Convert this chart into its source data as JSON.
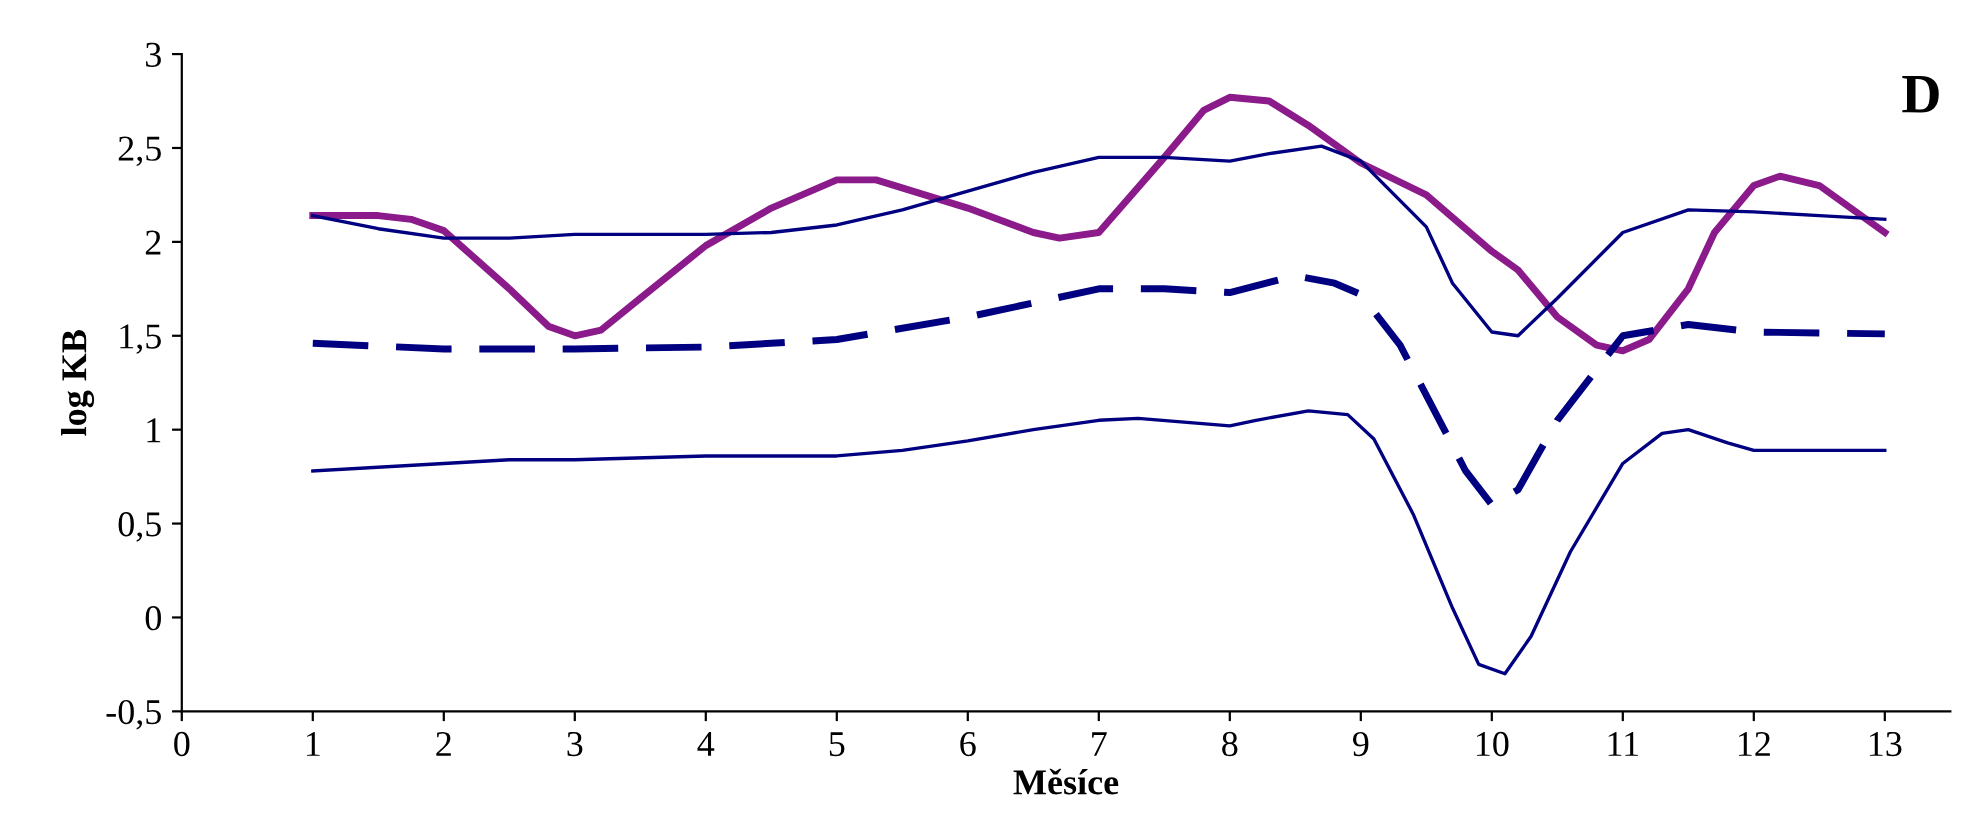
{
  "chart_data": {
    "type": "line",
    "xlabel": "Měsíce",
    "ylabel": "log KB",
    "annotations": [
      "D"
    ],
    "xlim": [
      0,
      13.5
    ],
    "xticks": [
      0,
      1,
      2,
      3,
      4,
      5,
      6,
      7,
      8,
      9,
      10,
      11,
      12,
      13
    ],
    "ylim": [
      -0.5,
      3
    ],
    "yticks": [
      {
        "value": -0.5,
        "label": "-0,5"
      },
      0,
      {
        "value": 0.5,
        "label": "0,5"
      },
      1,
      {
        "value": 1.5,
        "label": "1,5"
      },
      2,
      {
        "value": 2.5,
        "label": "2,5"
      },
      3
    ],
    "grid": false,
    "legend": false,
    "marker": "none",
    "series": [
      {
        "color": "#8b1a8b",
        "line_style": "solid",
        "x": [
          1,
          1.5,
          1.75,
          2,
          2.5,
          2.8,
          3,
          3.2,
          3.5,
          4,
          4.5,
          5,
          5.3,
          6,
          6.5,
          6.7,
          7,
          7.5,
          7.8,
          8,
          8.3,
          8.6,
          9,
          9.5,
          10,
          10.2,
          10.5,
          10.8,
          11,
          11.2,
          11.5,
          11.7,
          12,
          12.2,
          12.5,
          12.8,
          13
        ],
        "values": [
          2.14,
          2.14,
          2.12,
          2.06,
          1.75,
          1.55,
          1.5,
          1.53,
          1.7,
          1.98,
          2.18,
          2.33,
          2.33,
          2.18,
          2.05,
          2.02,
          2.05,
          2.45,
          2.7,
          2.77,
          2.75,
          2.62,
          2.42,
          2.25,
          1.95,
          1.85,
          1.6,
          1.45,
          1.42,
          1.48,
          1.75,
          2.05,
          2.3,
          2.35,
          2.3,
          2.15,
          2.05
        ]
      },
      {
        "color": "#000080",
        "line_style": "solid",
        "x": [
          1,
          1.5,
          2,
          2.5,
          3,
          4,
          4.5,
          5,
          5.5,
          6,
          6.5,
          7,
          7.5,
          8,
          8.3,
          8.7,
          9,
          9.5,
          9.7,
          10,
          10.2,
          10.5,
          11,
          11.5,
          12,
          12.5,
          13
        ],
        "values": [
          2.14,
          2.07,
          2.02,
          2.02,
          2.04,
          2.04,
          2.05,
          2.09,
          2.17,
          2.27,
          2.37,
          2.45,
          2.45,
          2.43,
          2.47,
          2.51,
          2.43,
          2.08,
          1.78,
          1.52,
          1.5,
          1.7,
          2.05,
          2.17,
          2.16,
          2.14,
          2.12
        ]
      },
      {
        "color": "#000080",
        "line_style": "dashed",
        "x": [
          1,
          2,
          3,
          4,
          5,
          6,
          7,
          7.5,
          8,
          8.5,
          8.8,
          9,
          9.3,
          9.6,
          9.8,
          10,
          10.2,
          10.5,
          11,
          11.5,
          12,
          13
        ],
        "values": [
          1.46,
          1.43,
          1.43,
          1.44,
          1.48,
          1.6,
          1.75,
          1.75,
          1.73,
          1.82,
          1.78,
          1.72,
          1.45,
          1.05,
          0.78,
          0.6,
          0.68,
          1.05,
          1.5,
          1.56,
          1.52,
          1.51
        ]
      },
      {
        "color": "#000080",
        "line_style": "solid",
        "x": [
          1,
          2,
          2.5,
          3,
          4,
          5,
          5.5,
          6,
          6.5,
          7,
          7.3,
          8,
          8.2,
          8.6,
          8.9,
          9.1,
          9.4,
          9.7,
          9.9,
          10.1,
          10.3,
          10.6,
          11,
          11.3,
          11.5,
          11.8,
          12,
          13
        ],
        "values": [
          0.78,
          0.82,
          0.84,
          0.84,
          0.86,
          0.86,
          0.89,
          0.94,
          1.0,
          1.05,
          1.06,
          1.02,
          1.05,
          1.1,
          1.08,
          0.95,
          0.55,
          0.05,
          -0.25,
          -0.3,
          -0.1,
          0.35,
          0.82,
          0.98,
          1.0,
          0.93,
          0.89,
          0.89
        ]
      }
    ]
  }
}
